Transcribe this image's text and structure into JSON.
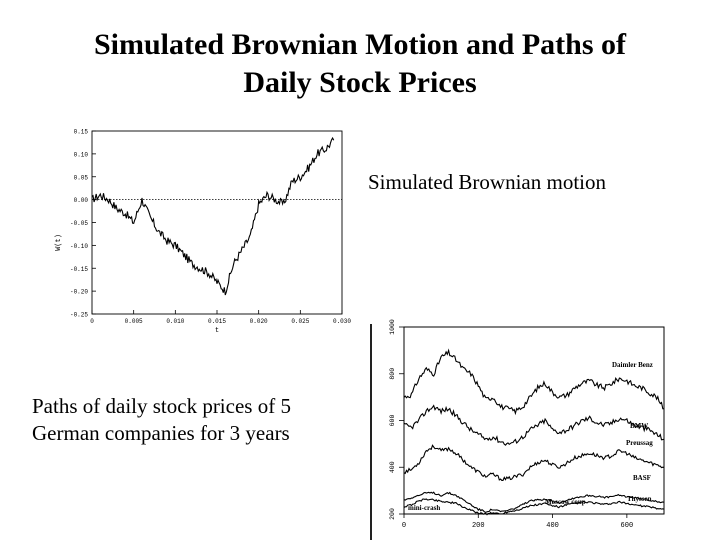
{
  "slide": {
    "title_line1": "Simulated Brownian Motion and Paths of",
    "title_line2": "Daily Stock Prices",
    "caption_brownian": "Simulated Brownian motion",
    "caption_stock_line1": "Paths of daily stock prices of 5",
    "caption_stock_line2": "German companies for 3 years"
  },
  "chart_data": [
    {
      "type": "line",
      "title": "",
      "xlabel": "t",
      "ylabel": "W(t)",
      "xlim": [
        0,
        0.03
      ],
      "ylim": [
        -0.25,
        0.15
      ],
      "x_ticks": [
        "0",
        "0.005",
        "0.010",
        "0.015",
        "0.020",
        "0.025",
        "0.030"
      ],
      "y_ticks": [
        "0.15",
        "0.10",
        "0.05",
        "0.00",
        "-0.05",
        "-0.10",
        "-0.15",
        "-0.20",
        "-0.25"
      ],
      "reference_line_y": 0.0,
      "color": "#000000",
      "series": [
        {
          "x": [
            0,
            0.001,
            0.002,
            0.003,
            0.004,
            0.005,
            0.006,
            0.007,
            0.008,
            0.009,
            0.01,
            0.011,
            0.012,
            0.013,
            0.014,
            0.015,
            0.016,
            0.017,
            0.018,
            0.019,
            0.02,
            0.021,
            0.022,
            0.023,
            0.024,
            0.025,
            0.026,
            0.027,
            0.028,
            0.029
          ],
          "y": [
            0.0,
            0.01,
            0.0,
            -0.02,
            -0.03,
            -0.05,
            0.0,
            -0.04,
            -0.07,
            -0.09,
            -0.1,
            -0.12,
            -0.14,
            -0.15,
            -0.16,
            -0.18,
            -0.2,
            -0.14,
            -0.11,
            -0.08,
            -0.01,
            0.01,
            0.0,
            -0.01,
            0.04,
            0.05,
            0.07,
            0.1,
            0.11,
            0.13
          ]
        }
      ]
    },
    {
      "type": "line",
      "title": "",
      "xlabel": "",
      "ylabel": "",
      "xlim": [
        0,
        700
      ],
      "ylim": [
        200,
        1000
      ],
      "x_ticks": [
        "0",
        "200",
        "400",
        "600"
      ],
      "y_ticks": [
        "1000",
        "800",
        "600",
        "400",
        "200"
      ],
      "color": "#000000",
      "annotations": [
        "mini-crash",
        "Moscow coup"
      ],
      "series": [
        {
          "name": "Daimler Benz",
          "x": [
            0,
            20,
            40,
            60,
            80,
            100,
            120,
            140,
            160,
            180,
            200,
            220,
            240,
            260,
            280,
            300,
            320,
            340,
            360,
            380,
            400,
            420,
            440,
            460,
            480,
            500,
            520,
            540,
            560,
            580,
            600,
            620,
            640,
            660,
            680,
            700
          ],
          "y": [
            700,
            710,
            780,
            820,
            800,
            870,
            890,
            860,
            820,
            800,
            750,
            690,
            700,
            660,
            650,
            640,
            660,
            700,
            740,
            760,
            720,
            700,
            710,
            740,
            760,
            770,
            750,
            740,
            760,
            780,
            770,
            750,
            740,
            720,
            700,
            650
          ]
        },
        {
          "name": "BMW",
          "x": [
            0,
            20,
            40,
            60,
            80,
            100,
            120,
            140,
            160,
            180,
            200,
            220,
            240,
            260,
            280,
            300,
            320,
            340,
            360,
            380,
            400,
            420,
            440,
            460,
            480,
            500,
            520,
            540,
            560,
            580,
            600,
            620,
            640,
            660,
            680,
            700
          ],
          "y": [
            580,
            570,
            600,
            640,
            660,
            640,
            650,
            620,
            590,
            560,
            540,
            520,
            530,
            510,
            500,
            510,
            530,
            560,
            580,
            600,
            560,
            550,
            560,
            580,
            600,
            610,
            590,
            580,
            590,
            610,
            600,
            580,
            570,
            560,
            540,
            520
          ]
        },
        {
          "name": "Preussag",
          "x": [
            0,
            20,
            40,
            60,
            80,
            100,
            120,
            140,
            160,
            180,
            200,
            220,
            240,
            260,
            280,
            300,
            320,
            340,
            360,
            380,
            400,
            420,
            440,
            460,
            480,
            500,
            520,
            540,
            560,
            580,
            600,
            620,
            640,
            660,
            680,
            700
          ],
          "y": [
            380,
            390,
            420,
            470,
            490,
            470,
            480,
            460,
            430,
            400,
            380,
            360,
            370,
            350,
            350,
            360,
            370,
            400,
            420,
            430,
            410,
            400,
            420,
            440,
            450,
            460,
            450,
            440,
            450,
            470,
            460,
            440,
            430,
            420,
            410,
            400
          ]
        },
        {
          "name": "BASF",
          "x": [
            0,
            20,
            40,
            60,
            80,
            100,
            120,
            140,
            160,
            180,
            200,
            220,
            240,
            260,
            280,
            300,
            320,
            340,
            360,
            380,
            400,
            420,
            440,
            460,
            480,
            500,
            520,
            540,
            560,
            580,
            600,
            620,
            640,
            660,
            680,
            700
          ],
          "y": [
            260,
            270,
            280,
            290,
            290,
            280,
            290,
            280,
            260,
            240,
            220,
            210,
            220,
            210,
            215,
            225,
            240,
            255,
            260,
            265,
            255,
            250,
            260,
            270,
            275,
            280,
            275,
            270,
            275,
            280,
            275,
            270,
            265,
            260,
            255,
            250
          ]
        },
        {
          "name": "Thyssen",
          "x": [
            0,
            20,
            40,
            60,
            80,
            100,
            120,
            140,
            160,
            180,
            200,
            220,
            240,
            260,
            280,
            300,
            320,
            340,
            360,
            380,
            400,
            420,
            440,
            460,
            480,
            500,
            520,
            540,
            560,
            580,
            600,
            620,
            640,
            660,
            680,
            700
          ],
          "y": [
            230,
            240,
            255,
            265,
            260,
            255,
            250,
            245,
            230,
            215,
            205,
            200,
            205,
            200,
            210,
            215,
            225,
            235,
            240,
            245,
            235,
            230,
            240,
            245,
            250,
            250,
            245,
            240,
            245,
            250,
            245,
            240,
            235,
            230,
            225,
            220
          ]
        }
      ]
    }
  ]
}
